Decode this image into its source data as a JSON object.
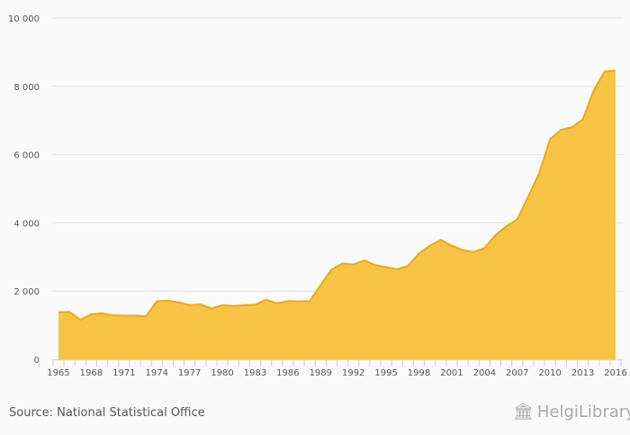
{
  "chart_data": {
    "type": "area",
    "title": "",
    "xlabel": "",
    "ylabel": "",
    "ylim": [
      0,
      10000
    ],
    "yticks": [
      0,
      2000,
      4000,
      6000,
      8000,
      10000
    ],
    "ytick_labels": [
      "0",
      "2 000",
      "4 000",
      "6 000",
      "8 000",
      "10 000"
    ],
    "xtick_labels": [
      "1965",
      "1968",
      "1971",
      "1974",
      "1977",
      "1980",
      "1983",
      "1986",
      "1989",
      "1992",
      "1995",
      "1998",
      "2001",
      "2004",
      "2007",
      "2010",
      "2013",
      "2016"
    ],
    "grid": true,
    "color": "#f9c13c",
    "line_color": "#f5a800",
    "x": [
      1965,
      1966,
      1967,
      1968,
      1969,
      1970,
      1971,
      1972,
      1973,
      1974,
      1975,
      1976,
      1977,
      1978,
      1979,
      1980,
      1981,
      1982,
      1983,
      1984,
      1985,
      1986,
      1987,
      1988,
      1989,
      1990,
      1991,
      1992,
      1993,
      1994,
      1995,
      1996,
      1997,
      1998,
      1999,
      2000,
      2001,
      2002,
      2003,
      2004,
      2005,
      2006,
      2007,
      2008,
      2009,
      2010,
      2011,
      2012,
      2013,
      2014,
      2015,
      2016
    ],
    "values": [
      1380,
      1390,
      1160,
      1320,
      1350,
      1290,
      1280,
      1280,
      1260,
      1700,
      1720,
      1670,
      1590,
      1610,
      1490,
      1590,
      1560,
      1590,
      1600,
      1750,
      1640,
      1710,
      1700,
      1710,
      2180,
      2630,
      2810,
      2780,
      2900,
      2760,
      2700,
      2640,
      2740,
      3100,
      3330,
      3500,
      3330,
      3200,
      3140,
      3260,
      3640,
      3900,
      4100,
      4760,
      5450,
      6450,
      6720,
      6800,
      7030,
      7880,
      8430,
      8460
    ]
  },
  "footer": {
    "source": "Source: National Statistical Office",
    "logo_text": "HelgiLibrary"
  }
}
